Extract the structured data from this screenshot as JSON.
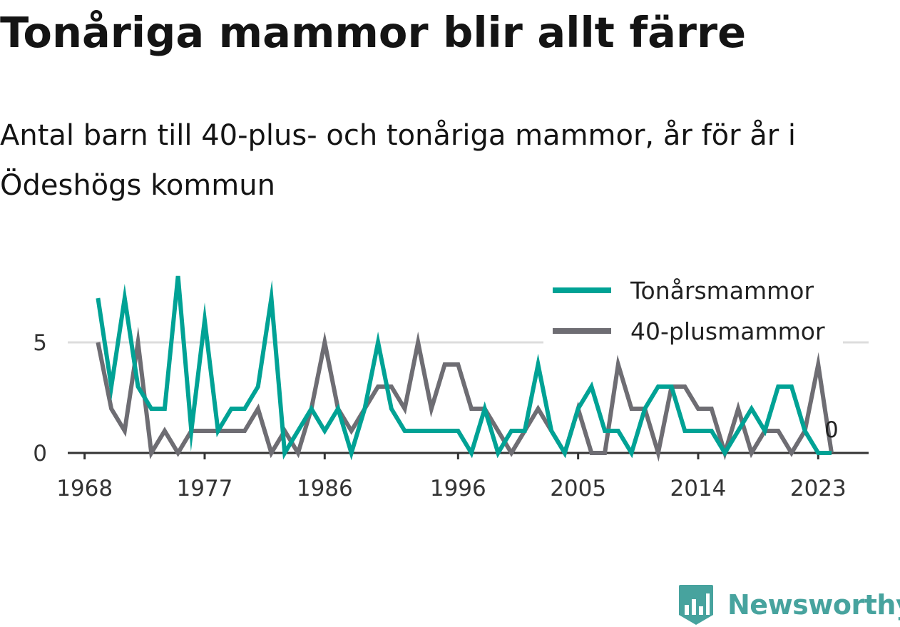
{
  "title": "Tonåriga mammor blir allt färre",
  "subtitle": "Antal barn till 40-plus- och tonåriga mammor, år för år i Ödeshögs kommun",
  "brand": {
    "name": "Newsworthy",
    "color": "#47a39e"
  },
  "chart_data": {
    "type": "line",
    "x": [
      1969,
      1970,
      1971,
      1972,
      1973,
      1974,
      1975,
      1976,
      1977,
      1978,
      1979,
      1980,
      1981,
      1982,
      1983,
      1984,
      1985,
      1986,
      1987,
      1988,
      1989,
      1990,
      1991,
      1992,
      1993,
      1994,
      1995,
      1996,
      1997,
      1998,
      1999,
      2000,
      2001,
      2002,
      2003,
      2004,
      2005,
      2006,
      2007,
      2008,
      2009,
      2010,
      2011,
      2012,
      2013,
      2014,
      2015,
      2016,
      2017,
      2018,
      2019,
      2020,
      2021,
      2022,
      2023,
      2024
    ],
    "series": [
      {
        "name": "Tonårsmammor",
        "color": "#00a295",
        "values": [
          7,
          3,
          7,
          3,
          2,
          2,
          8,
          1,
          6,
          1,
          2,
          2,
          3,
          7,
          0,
          1,
          2,
          1,
          2,
          0,
          2,
          5,
          2,
          1,
          1,
          1,
          1,
          1,
          0,
          2,
          0,
          1,
          1,
          4,
          1,
          0,
          2,
          3,
          1,
          1,
          0,
          2,
          3,
          3,
          1,
          1,
          1,
          0,
          1,
          2,
          1,
          3,
          3,
          1,
          0,
          0
        ]
      },
      {
        "name": "40-plusmammor",
        "color": "#6e6d73",
        "values": [
          5,
          2,
          1,
          5,
          0,
          1,
          0,
          1,
          1,
          1,
          1,
          1,
          2,
          0,
          1,
          0,
          2,
          5,
          2,
          1,
          2,
          3,
          3,
          2,
          5,
          2,
          4,
          4,
          2,
          2,
          1,
          0,
          1,
          2,
          1,
          0,
          2,
          0,
          0,
          4,
          2,
          2,
          0,
          3,
          3,
          2,
          2,
          0,
          2,
          0,
          1,
          1,
          0,
          1,
          4,
          0
        ]
      }
    ],
    "x_ticks": [
      "1968",
      "1977",
      "1986",
      "1996",
      "2005",
      "2014",
      "2023"
    ],
    "y_ticks": [
      "0",
      "5"
    ],
    "ylim": [
      0,
      8
    ],
    "end_label": "0",
    "grid": true,
    "legend_position": "top-right"
  }
}
